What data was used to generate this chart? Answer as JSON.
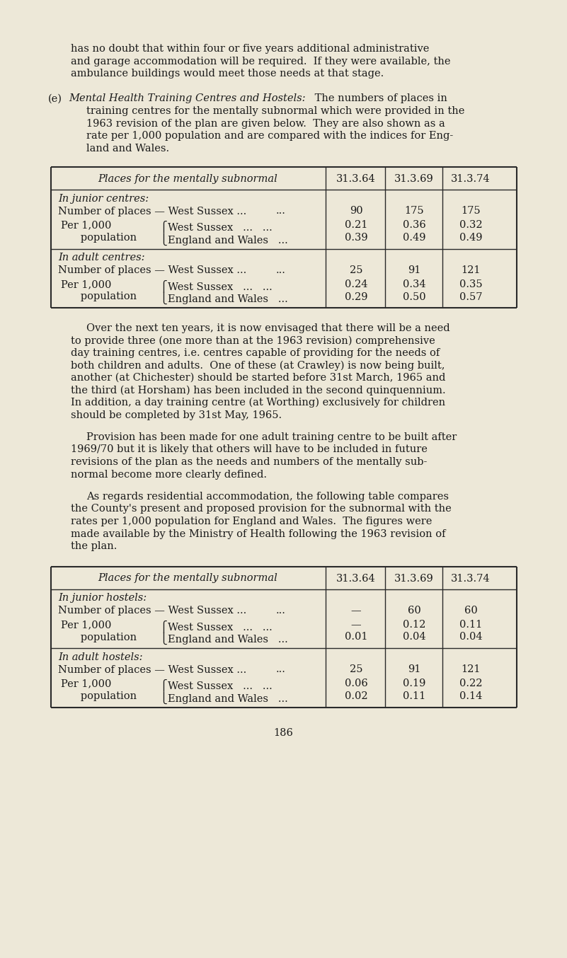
{
  "bg_color": "#ede8d8",
  "text_color": "#1a1a1a",
  "page_number": "186",
  "para1_lines": [
    "has no doubt that within four or five years additional administrative",
    "and garage accommodation will be required.  If they were available, the",
    "ambulance buildings would meet those needs at that stage."
  ],
  "section_e_italic": "Mental Health Training Centres and Hostels:",
  "section_e_body1": " The numbers of places in",
  "section_e_body_lines": [
    "training centres for the mentally subnormal which were provided in the",
    "1963 revision of the plan are given below.  They are also shown as a",
    "rate per 1,000 population and are compared with the indices for Eng-",
    "land and Wales."
  ],
  "table_header": "Places for the mentally subnormal",
  "table_cols": [
    "31.3.64",
    "31.3.69",
    "31.3.74"
  ],
  "table1": {
    "sections": [
      {
        "section_label": "In junior centres:",
        "num_label": "Number of places — West Sussex ...",
        "num_dots": "...",
        "num_values": [
          "90",
          "175",
          "175"
        ],
        "per_label1": "Per 1,000",
        "per_label2": "population",
        "brace_top": "West Sussex   ...   ...",
        "brace_bot": "England and Wales   ...",
        "per_top": [
          "0.21",
          "0.36",
          "0.32"
        ],
        "per_bot": [
          "0.39",
          "0.49",
          "0.49"
        ]
      },
      {
        "section_label": "In adult centres:",
        "num_label": "Number of places — West Sussex ...",
        "num_dots": "...",
        "num_values": [
          "25",
          "91",
          "121"
        ],
        "per_label1": "Per 1,000",
        "per_label2": "population",
        "brace_top": "West Sussex   ...   ...",
        "brace_bot": "England and Wales   ...",
        "per_top": [
          "0.24",
          "0.34",
          "0.35"
        ],
        "per_bot": [
          "0.29",
          "0.50",
          "0.57"
        ]
      }
    ]
  },
  "para2_lines": [
    "Over the next ten years, it is now envisaged that there will be a need",
    "to provide three (one more than at the 1963 revision) comprehensive",
    "day training centres, i.e. centres capable of providing for the needs of",
    "both children and adults.  One of these (at Crawley) is now being built,",
    "another (at Chichester) should be started before 31st March, 1965 and",
    "the third (at Horsham) has been included in the second quinquennium.",
    "In addition, a day training centre (at Worthing) exclusively for children",
    "should be completed by 31st May, 1965."
  ],
  "para3_lines": [
    "Provision has been made for one adult training centre to be built after",
    "1969/70 but it is likely that others will have to be included in future",
    "revisions of the plan as the needs and numbers of the mentally sub-",
    "normal become more clearly defined."
  ],
  "para4_lines": [
    "As regards residential accommodation, the following table compares",
    "the County's present and proposed provision for the subnormal with the",
    "rates per 1,000 population for England and Wales.  The figures were",
    "made available by the Ministry of Health following the 1963 revision of",
    "the plan."
  ],
  "table2": {
    "sections": [
      {
        "section_label": "In junior hostels:",
        "num_label": "Number of places — West Sussex ...",
        "num_dots": "...",
        "num_values": [
          "—",
          "60",
          "60"
        ],
        "per_label1": "Per 1,000",
        "per_label2": "population",
        "brace_top": "West Sussex   ...   ...",
        "brace_bot": "England and Wales   ...",
        "per_top": [
          "—",
          "0.12",
          "0.11"
        ],
        "per_bot": [
          "0.01",
          "0.04",
          "0.04"
        ]
      },
      {
        "section_label": "In adult hostels:",
        "num_label": "Number of places — West Sussex ...",
        "num_dots": "...",
        "num_values": [
          "25",
          "91",
          "121"
        ],
        "per_label1": "Per 1,000",
        "per_label2": "population",
        "brace_top": "West Sussex   ...   ...",
        "brace_bot": "England and Wales   ...",
        "per_top": [
          "0.06",
          "0.19",
          "0.22"
        ],
        "per_bot": [
          "0.02",
          "0.11",
          "0.14"
        ]
      }
    ]
  }
}
